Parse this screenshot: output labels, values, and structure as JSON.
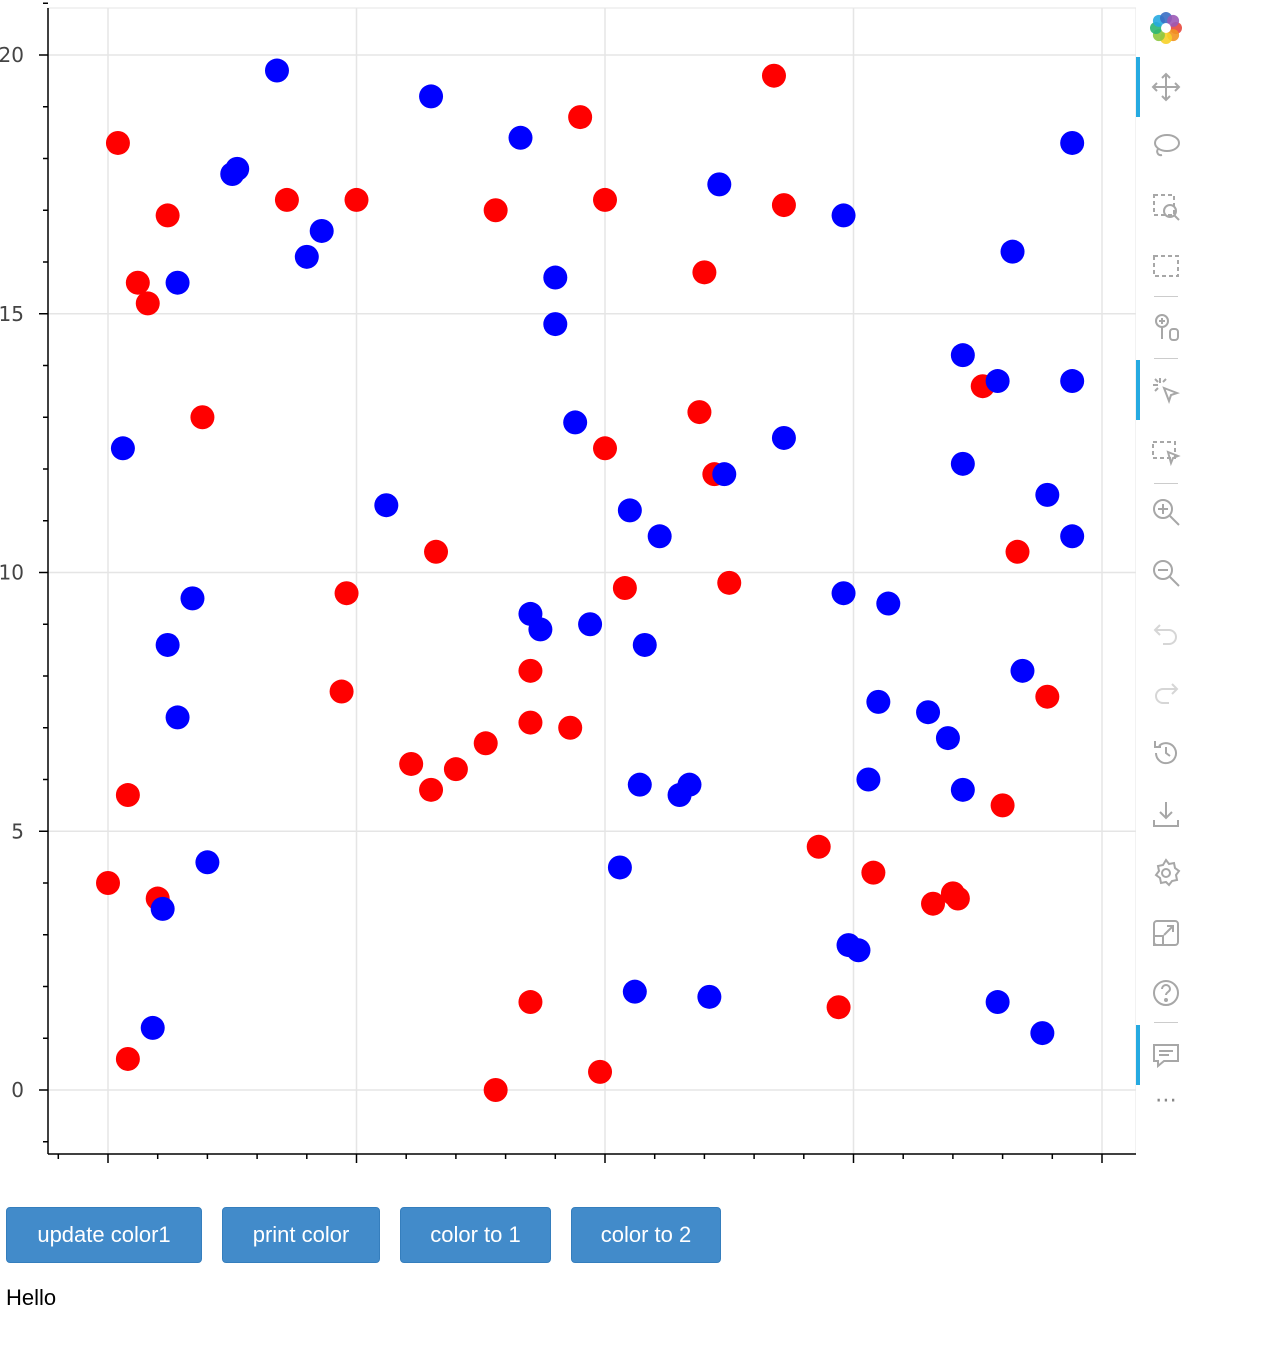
{
  "chart_data": {
    "type": "scatter",
    "title": "",
    "xlabel": "",
    "ylabel": "",
    "xlim": [
      -1.2,
      20.7
    ],
    "ylim": [
      -1.2,
      21.0
    ],
    "xticks": [
      0,
      5,
      10,
      15,
      20
    ],
    "yticks": [
      0,
      5,
      10,
      15,
      20
    ],
    "grid": true,
    "series": [
      {
        "color": "#ff0000",
        "points": [
          [
            0.2,
            18.3
          ],
          [
            1.2,
            16.9
          ],
          [
            0.6,
            15.6
          ],
          [
            0.8,
            15.2
          ],
          [
            1.9,
            13.0
          ],
          [
            0.4,
            5.7
          ],
          [
            0.0,
            4.0
          ],
          [
            1.0,
            3.7
          ],
          [
            0.4,
            0.6
          ],
          [
            3.6,
            17.2
          ],
          [
            5.0,
            17.2
          ],
          [
            4.8,
            9.6
          ],
          [
            4.7,
            7.7
          ],
          [
            6.6,
            10.4
          ],
          [
            6.1,
            6.3
          ],
          [
            6.5,
            5.8
          ],
          [
            7.0,
            6.2
          ],
          [
            7.6,
            6.7
          ],
          [
            7.8,
            17.0
          ],
          [
            9.5,
            18.8
          ],
          [
            10.0,
            17.2
          ],
          [
            8.5,
            8.1
          ],
          [
            8.5,
            7.1
          ],
          [
            9.3,
            7.0
          ],
          [
            8.5,
            1.7
          ],
          [
            7.8,
            0.0
          ],
          [
            9.9,
            0.35
          ],
          [
            10.0,
            12.4
          ],
          [
            10.4,
            9.7
          ],
          [
            12.0,
            15.8
          ],
          [
            11.9,
            13.1
          ],
          [
            12.2,
            11.9
          ],
          [
            12.5,
            9.8
          ],
          [
            13.4,
            19.6
          ],
          [
            13.6,
            17.1
          ],
          [
            14.3,
            4.7
          ],
          [
            15.4,
            4.2
          ],
          [
            14.7,
            1.6
          ],
          [
            16.6,
            3.6
          ],
          [
            17.0,
            3.8
          ],
          [
            17.1,
            3.7
          ],
          [
            17.6,
            13.6
          ],
          [
            18.3,
            10.4
          ],
          [
            18.0,
            5.5
          ],
          [
            18.9,
            7.6
          ]
        ]
      },
      {
        "color": "#0000ff",
        "points": [
          [
            0.3,
            12.4
          ],
          [
            1.4,
            15.6
          ],
          [
            1.2,
            8.6
          ],
          [
            1.7,
            9.5
          ],
          [
            1.4,
            7.2
          ],
          [
            2.0,
            4.4
          ],
          [
            1.1,
            3.5
          ],
          [
            0.9,
            1.2
          ],
          [
            2.5,
            17.7
          ],
          [
            2.6,
            17.8
          ],
          [
            3.4,
            19.7
          ],
          [
            4.0,
            16.1
          ],
          [
            4.3,
            16.6
          ],
          [
            5.6,
            11.3
          ],
          [
            6.5,
            19.2
          ],
          [
            8.3,
            18.4
          ],
          [
            9.0,
            15.7
          ],
          [
            9.0,
            14.8
          ],
          [
            9.4,
            12.9
          ],
          [
            8.5,
            9.2
          ],
          [
            8.7,
            8.9
          ],
          [
            9.7,
            9.0
          ],
          [
            10.5,
            11.2
          ],
          [
            11.1,
            10.7
          ],
          [
            10.8,
            8.6
          ],
          [
            10.7,
            5.9
          ],
          [
            11.5,
            5.7
          ],
          [
            11.7,
            5.9
          ],
          [
            10.3,
            4.3
          ],
          [
            10.6,
            1.9
          ],
          [
            12.1,
            1.8
          ],
          [
            12.3,
            17.5
          ],
          [
            12.4,
            11.9
          ],
          [
            13.6,
            12.6
          ],
          [
            14.8,
            16.9
          ],
          [
            14.8,
            9.6
          ],
          [
            15.7,
            9.4
          ],
          [
            15.5,
            7.5
          ],
          [
            15.3,
            6.0
          ],
          [
            14.9,
            2.8
          ],
          [
            15.1,
            2.7
          ],
          [
            16.5,
            7.3
          ],
          [
            16.9,
            6.8
          ],
          [
            17.2,
            5.8
          ],
          [
            17.2,
            14.2
          ],
          [
            17.2,
            12.1
          ],
          [
            17.9,
            13.7
          ],
          [
            18.2,
            16.2
          ],
          [
            18.9,
            11.5
          ],
          [
            18.4,
            8.1
          ],
          [
            17.9,
            1.7
          ],
          [
            18.8,
            1.1
          ],
          [
            19.4,
            18.3
          ],
          [
            19.4,
            13.7
          ],
          [
            19.4,
            10.7
          ]
        ]
      }
    ]
  },
  "toolbar": {
    "tools": [
      {
        "icon": "bokeh-logo-icon",
        "active": false
      },
      {
        "icon": "pan-icon",
        "active": true
      },
      {
        "icon": "lasso-select-icon",
        "active": false
      },
      {
        "icon": "box-zoom-icon",
        "active": false
      },
      {
        "icon": "box-select-icon",
        "active": false
      },
      {
        "icon": "wheel-zoom-icon",
        "active": false
      },
      {
        "icon": "tap-icon",
        "active": true
      },
      {
        "icon": "box-edit-icon",
        "active": false
      },
      {
        "icon": "zoom-in-icon",
        "active": false
      },
      {
        "icon": "zoom-out-icon",
        "active": false
      },
      {
        "icon": "undo-icon",
        "active": false
      },
      {
        "icon": "redo-icon",
        "active": false
      },
      {
        "icon": "reset-icon",
        "active": false
      },
      {
        "icon": "save-icon",
        "active": false
      },
      {
        "icon": "settings-icon",
        "active": false
      },
      {
        "icon": "fullscreen-icon",
        "active": false
      },
      {
        "icon": "help-icon",
        "active": false
      },
      {
        "icon": "hover-icon",
        "active": true
      }
    ],
    "more_label": "⋯"
  },
  "buttons": {
    "update_color1": "update color1",
    "print_color": "print color",
    "color_to_1": "color to 1",
    "color_to_2": "color to 2"
  },
  "output_text": "Hello"
}
